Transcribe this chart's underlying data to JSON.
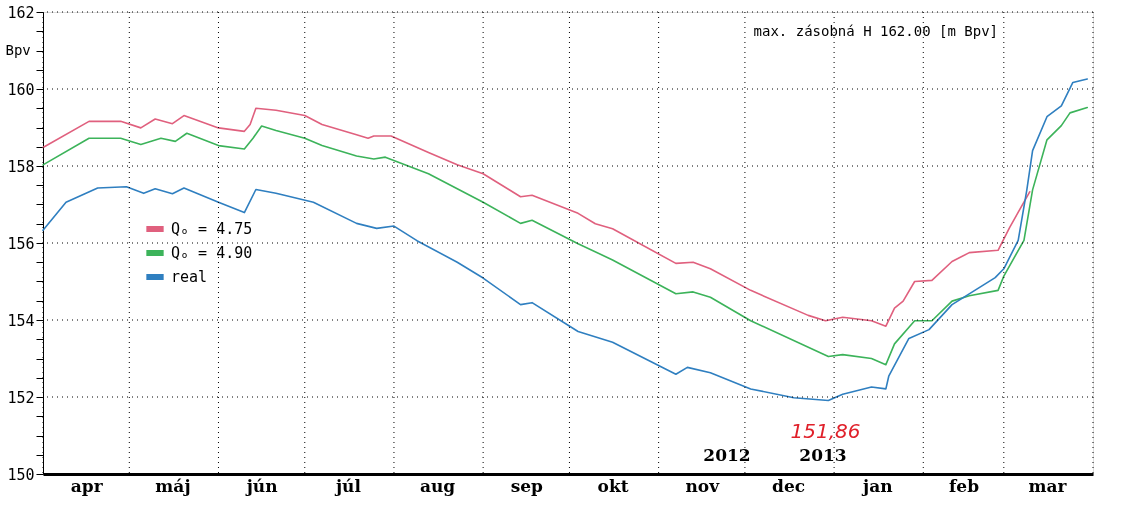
{
  "chart_data": {
    "type": "line",
    "ylabel": "Bpv",
    "xlim": [
      "2012-04-01",
      "2013-04-01"
    ],
    "ylim": [
      150,
      162
    ],
    "xticks": [
      {
        "value": "2012-04-01",
        "label": null
      },
      {
        "value": "2012-04-16",
        "label": "apr"
      },
      {
        "value": "2012-05-01",
        "label": null
      },
      {
        "value": "2012-05-16",
        "label": "máj"
      },
      {
        "value": "2012-06-01",
        "label": null
      },
      {
        "value": "2012-06-16",
        "label": "jún"
      },
      {
        "value": "2012-07-01",
        "label": null
      },
      {
        "value": "2012-07-16",
        "label": "júl"
      },
      {
        "value": "2012-08-01",
        "label": null
      },
      {
        "value": "2012-08-16",
        "label": "aug"
      },
      {
        "value": "2012-09-01",
        "label": null
      },
      {
        "value": "2012-09-16",
        "label": "sep"
      },
      {
        "value": "2012-10-01",
        "label": null
      },
      {
        "value": "2012-10-16",
        "label": "okt"
      },
      {
        "value": "2012-11-01",
        "label": null
      },
      {
        "value": "2012-11-16",
        "label": "nov"
      },
      {
        "value": "2012-12-01",
        "label": null
      },
      {
        "value": "2012-12-16",
        "label": "dec"
      },
      {
        "value": "2013-01-01",
        "label": null
      },
      {
        "value": "2013-01-16",
        "label": "jan"
      },
      {
        "value": "2013-02-01",
        "label": null
      },
      {
        "value": "2013-02-15",
        "label": "feb"
      },
      {
        "value": "2013-03-01",
        "label": null
      },
      {
        "value": "2013-03-16",
        "label": "mar"
      },
      {
        "value": "2013-04-01",
        "label": null
      }
    ],
    "yticks": [
      150,
      {
        "value": 150.5,
        "label": null
      },
      {
        "value": 151,
        "label": null
      },
      {
        "value": 151.5,
        "label": null
      },
      152,
      {
        "value": 152.5,
        "label": null
      },
      {
        "value": 153,
        "label": null
      },
      {
        "value": 153.5,
        "label": null
      },
      154,
      {
        "value": 154.5,
        "label": null
      },
      {
        "value": 155,
        "label": null
      },
      {
        "value": 155.5,
        "label": null
      },
      156,
      {
        "value": 156.5,
        "label": null
      },
      {
        "value": 157,
        "label": null
      },
      {
        "value": 157.5,
        "label": null
      },
      158,
      {
        "value": 158.5,
        "label": null
      },
      {
        "value": 159,
        "label": null
      },
      {
        "value": 159.5,
        "label": null
      },
      160,
      {
        "value": 160.5,
        "label": null
      },
      {
        "value": 161,
        "label": null
      },
      {
        "value": 161.5,
        "label": null
      },
      162
    ],
    "grid": true,
    "legend": "left",
    "line_style": "solid",
    "series": [
      {
        "name": "Qₒ = 4.75",
        "color": "#e0607e",
        "x": [
          "2012-04-01",
          "2012-04-17",
          "2012-04-28",
          "2012-05-05",
          "2012-05-10",
          "2012-05-16",
          "2012-05-20",
          "2012-06-01",
          "2012-06-10",
          "2012-06-12",
          "2012-06-14",
          "2012-06-21",
          "2012-07-01",
          "2012-07-07",
          "2012-07-19",
          "2012-07-23",
          "2012-07-25",
          "2012-07-31",
          "2012-08-13",
          "2012-08-23",
          "2012-09-01",
          "2012-09-14",
          "2012-09-18",
          "2012-10-04",
          "2012-10-10",
          "2012-10-16",
          "2012-11-07",
          "2012-11-13",
          "2012-11-19",
          "2012-12-03",
          "2012-12-23",
          "2012-12-29",
          "2013-01-04",
          "2013-01-14",
          "2013-01-19",
          "2013-01-22",
          "2013-01-25",
          "2013-01-29",
          "2013-02-04",
          "2013-02-11",
          "2013-02-17",
          "2013-02-27",
          "2013-03-03",
          "2013-03-10"
        ],
        "values": [
          158.48,
          159.16,
          159.16,
          158.99,
          159.22,
          159.1,
          159.31,
          158.99,
          158.9,
          159.08,
          159.5,
          159.45,
          159.31,
          159.08,
          158.81,
          158.72,
          158.78,
          158.78,
          158.35,
          158.03,
          157.8,
          157.2,
          157.24,
          156.77,
          156.5,
          156.37,
          155.47,
          155.5,
          155.33,
          154.77,
          154.12,
          153.98,
          154.07,
          153.98,
          153.84,
          154.31,
          154.49,
          155.0,
          155.03,
          155.52,
          155.75,
          155.81,
          156.4,
          157.33
        ]
      },
      {
        "name": "Qₒ = 4.90",
        "color": "#3cb35a",
        "x": [
          "2012-04-01",
          "2012-04-17",
          "2012-04-28",
          "2012-05-05",
          "2012-05-12",
          "2012-05-17",
          "2012-05-21",
          "2012-06-01",
          "2012-06-10",
          "2012-06-13",
          "2012-06-16",
          "2012-06-21",
          "2012-07-01",
          "2012-07-07",
          "2012-07-19",
          "2012-07-25",
          "2012-07-29",
          "2012-08-13",
          "2012-09-01",
          "2012-09-14",
          "2012-09-18",
          "2012-10-04",
          "2012-10-16",
          "2012-11-07",
          "2012-11-13",
          "2012-11-19",
          "2012-12-03",
          "2012-12-30",
          "2013-01-04",
          "2013-01-14",
          "2013-01-19",
          "2013-01-22",
          "2013-01-29",
          "2013-02-04",
          "2013-02-11",
          "2013-02-17",
          "2013-02-27",
          "2013-03-01",
          "2013-03-08",
          "2013-03-11",
          "2013-03-16",
          "2013-03-21",
          "2013-03-24",
          "2013-03-30"
        ],
        "values": [
          158.03,
          158.72,
          158.72,
          158.56,
          158.72,
          158.64,
          158.85,
          158.53,
          158.44,
          158.72,
          159.04,
          158.92,
          158.72,
          158.53,
          158.26,
          158.18,
          158.23,
          157.8,
          157.06,
          156.51,
          156.59,
          155.98,
          155.56,
          154.68,
          154.73,
          154.59,
          153.98,
          153.05,
          153.1,
          153.0,
          152.84,
          153.38,
          153.98,
          153.98,
          154.49,
          154.63,
          154.77,
          155.14,
          156.07,
          157.38,
          158.68,
          159.05,
          159.38,
          159.52
        ]
      },
      {
        "name": "real",
        "color": "#2f7fc0",
        "x": [
          "2012-04-01",
          "2012-04-09",
          "2012-04-20",
          "2012-04-30",
          "2012-05-06",
          "2012-05-10",
          "2012-05-16",
          "2012-05-20",
          "2012-06-01",
          "2012-06-10",
          "2012-06-14",
          "2012-06-21",
          "2012-07-04",
          "2012-07-19",
          "2012-07-26",
          "2012-08-01",
          "2012-08-09",
          "2012-08-23",
          "2012-09-01",
          "2012-09-14",
          "2012-09-18",
          "2012-10-04",
          "2012-10-16",
          "2012-11-07",
          "2012-11-11",
          "2012-11-19",
          "2012-12-03",
          "2012-12-18",
          "2012-12-30",
          "2013-01-04",
          "2013-01-14",
          "2013-01-19",
          "2013-01-20",
          "2013-01-27",
          "2013-02-03",
          "2013-02-11",
          "2013-02-26",
          "2013-03-01",
          "2013-03-06",
          "2013-03-09",
          "2013-03-11",
          "2013-03-16",
          "2013-03-21",
          "2013-03-25",
          "2013-03-30"
        ],
        "values": [
          156.33,
          157.06,
          157.43,
          157.46,
          157.29,
          157.41,
          157.28,
          157.43,
          157.06,
          156.79,
          157.39,
          157.29,
          157.06,
          156.51,
          156.38,
          156.44,
          156.06,
          155.5,
          155.09,
          154.4,
          154.45,
          153.7,
          153.42,
          152.59,
          152.77,
          152.63,
          152.21,
          151.98,
          151.91,
          152.07,
          152.26,
          152.21,
          152.54,
          153.52,
          153.75,
          154.4,
          155.1,
          155.33,
          156.07,
          157.38,
          158.4,
          159.28,
          159.56,
          160.17,
          160.26
        ]
      }
    ],
    "annotations": [
      "max. zásobná H 162.00 [m Bpv]",
      "2012",
      "2013",
      {
        "text": "151,86",
        "x": "2012-12-29",
        "y": 151.86
      }
    ]
  }
}
